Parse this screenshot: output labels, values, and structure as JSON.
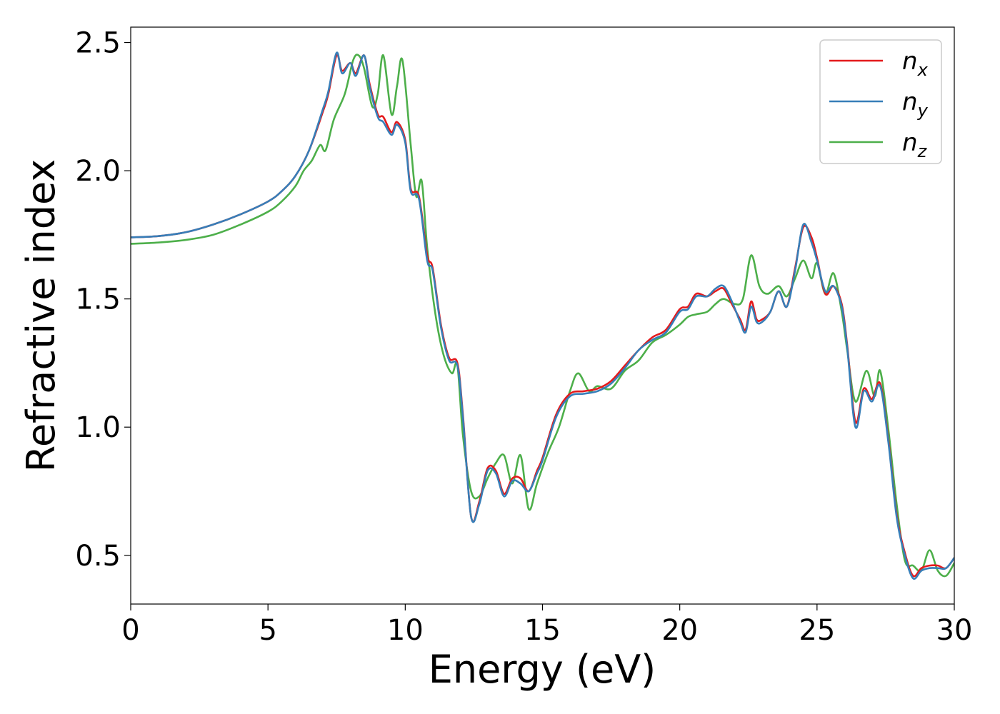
{
  "chart_data": {
    "type": "line",
    "xlabel": "Energy (eV)",
    "ylabel": "Refractive index",
    "xlim": [
      0,
      30
    ],
    "ylim": [
      0.31,
      2.56
    ],
    "xticks": [
      "0",
      "5",
      "10",
      "15",
      "20",
      "25",
      "30"
    ],
    "yticks": [
      "0.5",
      "1.0",
      "1.5",
      "2.0",
      "2.5"
    ],
    "grid": false,
    "legend_position": "top-right",
    "series": [
      {
        "name": "n",
        "sub": "x",
        "color": "#e41a1c",
        "x": [
          0,
          1,
          2,
          3,
          4,
          5,
          5.5,
          6,
          6.5,
          7,
          7.2,
          7.5,
          7.7,
          8,
          8.2,
          8.5,
          8.7,
          9,
          9.2,
          9.5,
          9.7,
          10,
          10.2,
          10.5,
          10.8,
          11,
          11.3,
          11.6,
          11.9,
          12.1,
          12.4,
          12.7,
          13,
          13.3,
          13.6,
          13.9,
          14.2,
          14.5,
          14.8,
          15,
          15.5,
          16,
          16.5,
          17,
          17.5,
          18,
          18.5,
          19,
          19.5,
          20,
          20.3,
          20.6,
          21,
          21.3,
          21.6,
          21.9,
          22.2,
          22.4,
          22.6,
          22.8,
          23,
          23.3,
          23.6,
          23.9,
          24.2,
          24.5,
          24.8,
          25,
          25.3,
          25.6,
          25.9,
          26.1,
          26.4,
          26.7,
          27,
          27.3,
          27.6,
          27.9,
          28.2,
          28.5,
          28.8,
          29.1,
          29.4,
          29.7,
          30
        ],
        "y": [
          1.74,
          1.745,
          1.76,
          1.79,
          1.83,
          1.88,
          1.92,
          1.98,
          2.08,
          2.23,
          2.3,
          2.45,
          2.39,
          2.42,
          2.38,
          2.45,
          2.34,
          2.22,
          2.21,
          2.15,
          2.19,
          2.12,
          1.93,
          1.9,
          1.67,
          1.62,
          1.4,
          1.27,
          1.25,
          1.05,
          0.65,
          0.71,
          0.84,
          0.83,
          0.74,
          0.8,
          0.8,
          0.75,
          0.83,
          0.88,
          1.05,
          1.13,
          1.14,
          1.15,
          1.18,
          1.24,
          1.3,
          1.35,
          1.38,
          1.46,
          1.47,
          1.52,
          1.51,
          1.53,
          1.54,
          1.48,
          1.42,
          1.38,
          1.49,
          1.42,
          1.42,
          1.45,
          1.53,
          1.47,
          1.62,
          1.78,
          1.74,
          1.66,
          1.52,
          1.55,
          1.48,
          1.32,
          1.02,
          1.15,
          1.11,
          1.17,
          0.95,
          0.66,
          0.51,
          0.42,
          0.45,
          0.46,
          0.46,
          0.45,
          0.49
        ]
      },
      {
        "name": "n",
        "sub": "y",
        "color": "#377eb8",
        "x": [
          0,
          1,
          2,
          3,
          4,
          5,
          5.5,
          6,
          6.5,
          7,
          7.2,
          7.5,
          7.7,
          8,
          8.2,
          8.5,
          8.7,
          9,
          9.2,
          9.5,
          9.7,
          10,
          10.2,
          10.5,
          10.8,
          11,
          11.3,
          11.6,
          11.9,
          12.1,
          12.4,
          12.7,
          13,
          13.3,
          13.6,
          13.9,
          14.2,
          14.5,
          14.8,
          15,
          15.5,
          16,
          16.5,
          17,
          17.5,
          18,
          18.5,
          19,
          19.5,
          20,
          20.3,
          20.6,
          21,
          21.3,
          21.6,
          21.9,
          22.2,
          22.4,
          22.6,
          22.8,
          23,
          23.3,
          23.6,
          23.9,
          24.2,
          24.5,
          24.8,
          25,
          25.3,
          25.6,
          25.9,
          26.1,
          26.4,
          26.7,
          27,
          27.3,
          27.6,
          27.9,
          28.2,
          28.5,
          28.8,
          29.1,
          29.4,
          29.7,
          30
        ],
        "y": [
          1.74,
          1.745,
          1.76,
          1.79,
          1.83,
          1.88,
          1.92,
          1.98,
          2.08,
          2.24,
          2.31,
          2.46,
          2.38,
          2.42,
          2.37,
          2.45,
          2.33,
          2.21,
          2.19,
          2.14,
          2.18,
          2.11,
          1.92,
          1.89,
          1.65,
          1.61,
          1.39,
          1.26,
          1.24,
          1.04,
          0.65,
          0.7,
          0.83,
          0.82,
          0.73,
          0.79,
          0.78,
          0.75,
          0.82,
          0.87,
          1.04,
          1.12,
          1.13,
          1.14,
          1.17,
          1.23,
          1.3,
          1.34,
          1.37,
          1.45,
          1.46,
          1.51,
          1.51,
          1.54,
          1.55,
          1.49,
          1.41,
          1.37,
          1.47,
          1.41,
          1.41,
          1.45,
          1.53,
          1.47,
          1.61,
          1.79,
          1.72,
          1.65,
          1.53,
          1.55,
          1.47,
          1.31,
          1.0,
          1.14,
          1.1,
          1.16,
          0.94,
          0.65,
          0.5,
          0.41,
          0.44,
          0.45,
          0.45,
          0.45,
          0.49
        ]
      },
      {
        "name": "n",
        "sub": "z",
        "color": "#4daf4a",
        "x": [
          0,
          1,
          2,
          3,
          4,
          5,
          5.5,
          6,
          6.3,
          6.6,
          6.9,
          7.1,
          7.4,
          7.8,
          8.1,
          8.3,
          8.5,
          8.8,
          9,
          9.2,
          9.5,
          9.7,
          9.9,
          10.2,
          10.4,
          10.6,
          10.8,
          11.1,
          11.4,
          11.7,
          11.9,
          12.1,
          12.4,
          12.7,
          13,
          13.3,
          13.6,
          13.9,
          14.2,
          14.5,
          14.8,
          15.2,
          15.6,
          16,
          16.3,
          16.7,
          17,
          17.5,
          18,
          18.5,
          19,
          19.5,
          20,
          20.3,
          20.6,
          21,
          21.3,
          21.6,
          22,
          22.3,
          22.6,
          22.9,
          23.2,
          23.6,
          23.9,
          24.2,
          24.5,
          24.8,
          25,
          25.3,
          25.6,
          25.9,
          26.1,
          26.4,
          26.8,
          27.1,
          27.3,
          27.6,
          27.9,
          28.2,
          28.5,
          28.8,
          29.1,
          29.4,
          29.7,
          30
        ],
        "y": [
          1.715,
          1.72,
          1.73,
          1.75,
          1.79,
          1.84,
          1.88,
          1.94,
          2.0,
          2.04,
          2.1,
          2.08,
          2.2,
          2.3,
          2.43,
          2.45,
          2.4,
          2.25,
          2.3,
          2.45,
          2.22,
          2.33,
          2.43,
          2.1,
          1.9,
          1.96,
          1.7,
          1.44,
          1.28,
          1.21,
          1.24,
          0.97,
          0.75,
          0.73,
          0.8,
          0.86,
          0.89,
          0.78,
          0.89,
          0.68,
          0.78,
          0.9,
          1.0,
          1.14,
          1.21,
          1.14,
          1.16,
          1.15,
          1.22,
          1.26,
          1.33,
          1.36,
          1.4,
          1.43,
          1.44,
          1.45,
          1.48,
          1.5,
          1.48,
          1.5,
          1.67,
          1.55,
          1.52,
          1.55,
          1.51,
          1.58,
          1.65,
          1.58,
          1.64,
          1.52,
          1.6,
          1.45,
          1.3,
          1.1,
          1.22,
          1.12,
          1.22,
          0.99,
          0.7,
          0.48,
          0.46,
          0.44,
          0.52,
          0.44,
          0.42,
          0.47
        ]
      }
    ]
  }
}
